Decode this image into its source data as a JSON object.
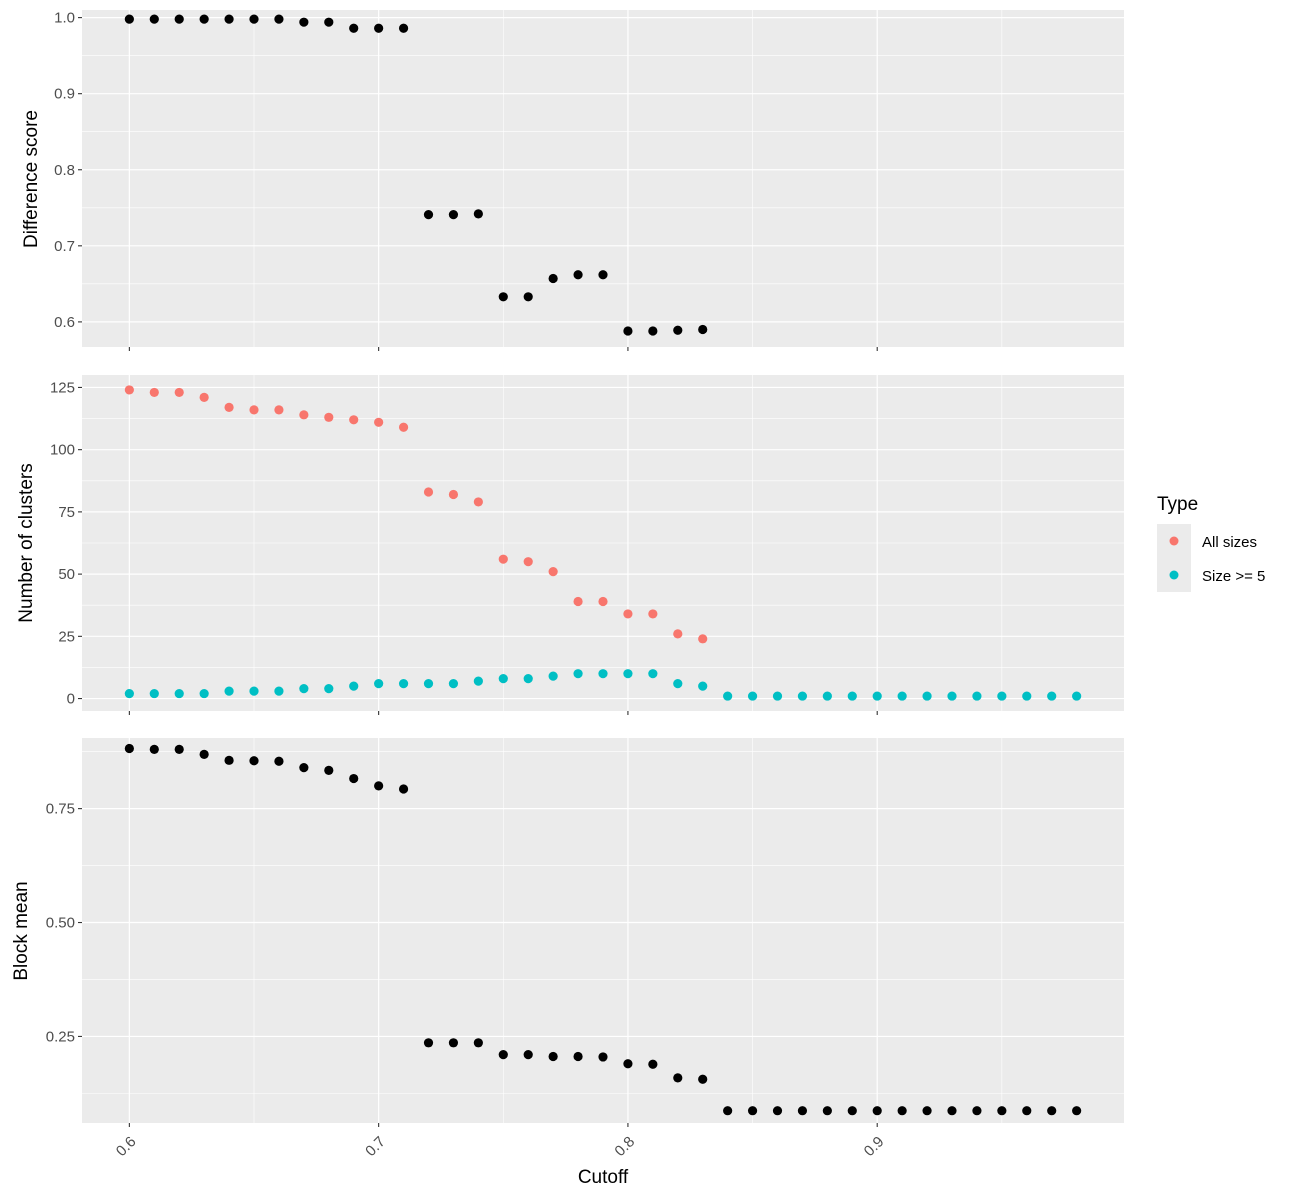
{
  "chart_data": [
    {
      "type": "scatter",
      "panel": "top",
      "ylabel": "Difference score",
      "xlim": [
        0.581,
        0.999
      ],
      "ylim": [
        0.567,
        1.01
      ],
      "yticks": [
        0.6,
        0.7,
        0.8,
        0.9,
        1.0
      ],
      "ytick_labels": [
        "0.6",
        "0.7",
        "0.8",
        "0.9",
        "1.0"
      ],
      "grid": true,
      "series": [
        {
          "color": "#000000",
          "x": [
            0.6,
            0.61,
            0.62,
            0.63,
            0.64,
            0.65,
            0.66,
            0.67,
            0.68,
            0.69,
            0.7,
            0.71,
            0.72,
            0.73,
            0.74,
            0.75,
            0.76,
            0.77,
            0.78,
            0.79,
            0.8,
            0.81,
            0.82,
            0.83
          ],
          "y": [
            0.998,
            0.998,
            0.998,
            0.998,
            0.998,
            0.998,
            0.998,
            0.994,
            0.994,
            0.986,
            0.986,
            0.986,
            0.741,
            0.741,
            0.742,
            0.633,
            0.633,
            0.657,
            0.662,
            0.662,
            0.588,
            0.588,
            0.589,
            0.59
          ]
        }
      ]
    },
    {
      "type": "scatter",
      "panel": "middle",
      "ylabel": "Number of clusters",
      "xlim": [
        0.581,
        0.999
      ],
      "ylim": [
        -5,
        130
      ],
      "yticks": [
        0,
        25,
        50,
        75,
        100,
        125
      ],
      "ytick_labels": [
        "0",
        "25",
        "50",
        "75",
        "100",
        "125"
      ],
      "grid": true,
      "legend": {
        "title": "Type",
        "position": "right",
        "entries": [
          "All sizes",
          "Size >= 5"
        ]
      },
      "series": [
        {
          "name": "All sizes",
          "color": "#F8766D",
          "x": [
            0.6,
            0.61,
            0.62,
            0.63,
            0.64,
            0.65,
            0.66,
            0.67,
            0.68,
            0.69,
            0.7,
            0.71,
            0.72,
            0.73,
            0.74,
            0.75,
            0.76,
            0.77,
            0.78,
            0.79,
            0.8,
            0.81,
            0.82,
            0.83
          ],
          "y": [
            124,
            123,
            123,
            121,
            117,
            116,
            116,
            114,
            113,
            112,
            111,
            109,
            83,
            82,
            79,
            56,
            55,
            51,
            39,
            39,
            34,
            34,
            26,
            24
          ]
        },
        {
          "name": "Size >= 5",
          "color": "#00BFC4",
          "x": [
            0.6,
            0.61,
            0.62,
            0.63,
            0.64,
            0.65,
            0.66,
            0.67,
            0.68,
            0.69,
            0.7,
            0.71,
            0.72,
            0.73,
            0.74,
            0.75,
            0.76,
            0.77,
            0.78,
            0.79,
            0.8,
            0.81,
            0.82,
            0.83,
            0.84,
            0.85,
            0.86,
            0.87,
            0.88,
            0.89,
            0.9,
            0.91,
            0.92,
            0.93,
            0.94,
            0.95,
            0.96,
            0.97,
            0.98
          ],
          "y": [
            2,
            2,
            2,
            2,
            3,
            3,
            3,
            4,
            4,
            5,
            6,
            6,
            6,
            6,
            7,
            8,
            8,
            9,
            10,
            10,
            10,
            10,
            6,
            5,
            1,
            1,
            1,
            1,
            1,
            1,
            1,
            1,
            1,
            1,
            1,
            1,
            1,
            1,
            1
          ]
        }
      ]
    },
    {
      "type": "scatter",
      "panel": "bottom",
      "ylabel": "Block mean",
      "xlabel": "Cutoff",
      "xlim": [
        0.581,
        0.999
      ],
      "ylim": [
        0.06,
        0.905
      ],
      "yticks": [
        0.25,
        0.5,
        0.75
      ],
      "ytick_labels": [
        "0.25",
        "0.50",
        "0.75"
      ],
      "xticks": [
        0.6,
        0.7,
        0.8,
        0.9
      ],
      "xtick_labels": [
        "0.6",
        "0.7",
        "0.8",
        "0.9"
      ],
      "grid": true,
      "series": [
        {
          "color": "#000000",
          "x": [
            0.6,
            0.61,
            0.62,
            0.63,
            0.64,
            0.65,
            0.66,
            0.67,
            0.68,
            0.69,
            0.7,
            0.71,
            0.72,
            0.73,
            0.74,
            0.75,
            0.76,
            0.77,
            0.78,
            0.79,
            0.8,
            0.81,
            0.82,
            0.83,
            0.84,
            0.85,
            0.86,
            0.87,
            0.88,
            0.89,
            0.9,
            0.91,
            0.92,
            0.93,
            0.94,
            0.95,
            0.96,
            0.97,
            0.98
          ],
          "y": [
            0.882,
            0.88,
            0.88,
            0.869,
            0.856,
            0.855,
            0.854,
            0.84,
            0.834,
            0.816,
            0.8,
            0.793,
            0.236,
            0.236,
            0.236,
            0.21,
            0.21,
            0.206,
            0.206,
            0.205,
            0.19,
            0.189,
            0.159,
            0.156,
            0.087,
            0.087,
            0.087,
            0.087,
            0.087,
            0.087,
            0.087,
            0.087,
            0.087,
            0.087,
            0.087,
            0.087,
            0.087,
            0.087,
            0.087
          ]
        }
      ]
    }
  ]
}
